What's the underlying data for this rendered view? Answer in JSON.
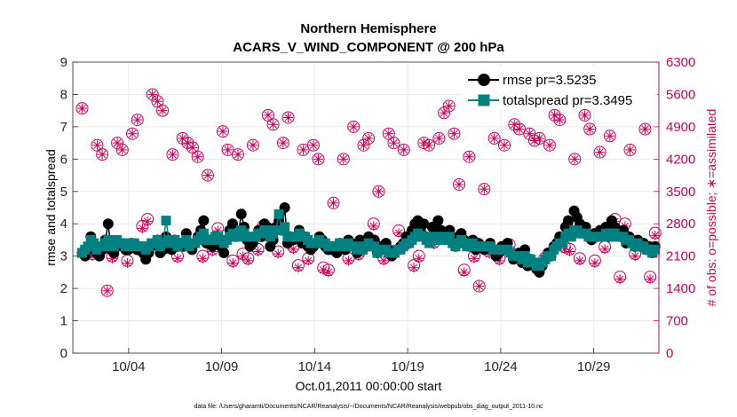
{
  "chart_data": {
    "type": "line",
    "title": "Northern Hemisphere",
    "subtitle": "ACARS_V_WIND_COMPONENT @ 200 hPa",
    "xlabel": "Oct.01,2011 00:00:00 start",
    "ylabel_left": "rmse and totalspread",
    "ylabel_right": "# of obs: o=possible; ∗=assimilated",
    "footnote": "data file: /Users/gharamti/Documents/NCAR/Reanalysis/~/Documents/NCAR/Reanalysis/webpub/obs_diag_output_2011-10.nc",
    "x_range_days": [
      0.5,
      32.0
    ],
    "x_ticks": [
      {
        "value": 3.5,
        "label": "10/04"
      },
      {
        "value": 8.5,
        "label": "10/09"
      },
      {
        "value": 13.5,
        "label": "10/14"
      },
      {
        "value": 18.5,
        "label": "10/19"
      },
      {
        "value": 23.5,
        "label": "10/24"
      },
      {
        "value": 28.5,
        "label": "10/29"
      }
    ],
    "ylim_left": [
      0,
      9
    ],
    "yticks_left": [
      "0",
      "1",
      "2",
      "3",
      "4",
      "5",
      "6",
      "7",
      "8",
      "9"
    ],
    "ylim_right": [
      0,
      6300
    ],
    "yticks_right": [
      "0",
      "700",
      "1400",
      "2100",
      "2800",
      "3500",
      "4200",
      "4900",
      "5600",
      "6300"
    ],
    "grid": true,
    "legend_position": "top-right",
    "colors": {
      "rmse": "#000000",
      "totalspread": "#008080",
      "obs": "#c8005a",
      "axis_right": "#c8005a"
    },
    "series": [
      {
        "name": "rmse pr=3.5235",
        "axis": "left",
        "marker": "circle",
        "values": [
          3.1,
          3.0,
          3.2,
          3.6,
          3.3,
          3.1,
          3.0,
          3.2,
          3.5,
          4.0,
          3.2,
          3.1,
          3.3,
          3.4,
          3.3,
          3.2,
          3.2,
          3.4,
          3.3,
          3.2,
          3.3,
          3.1,
          2.9,
          3.1,
          3.3,
          3.4,
          3.5,
          3.1,
          3.2,
          3.6,
          3.3,
          3.2,
          3.5,
          3.3,
          3.4,
          3.3,
          3.7,
          3.3,
          3.2,
          3.4,
          3.6,
          3.8,
          4.1,
          3.4,
          3.5,
          3.3,
          3.6,
          3.5,
          3.3,
          3.1,
          3.5,
          3.8,
          4.0,
          3.6,
          3.7,
          4.3,
          3.9,
          3.5,
          3.3,
          3.4,
          3.6,
          3.8,
          3.6,
          4.0,
          3.9,
          3.3,
          3.5,
          3.9,
          4.1,
          3.8,
          4.5,
          3.4,
          3.6,
          3.5,
          3.6,
          3.8,
          3.4,
          3.6,
          3.3,
          3.2,
          3.3,
          3.4,
          3.6,
          3.5,
          3.3,
          3.2,
          3.2,
          3.3,
          3.1,
          3.4,
          3.3,
          3.2,
          3.5,
          3.4,
          3.3,
          3.1,
          3.5,
          3.2,
          3.4,
          3.6,
          3.4,
          3.5,
          3.1,
          3.3,
          3.2,
          3.4,
          3.2,
          3.0,
          3.1,
          3.2,
          3.3,
          3.4,
          3.6,
          3.5,
          3.8,
          4.0,
          4.1,
          3.9,
          4.0,
          3.6,
          3.5,
          3.9,
          3.7,
          4.1,
          3.8,
          3.6,
          3.7,
          3.8,
          3.5,
          3.3,
          3.6,
          3.7,
          3.5,
          3.4,
          3.3,
          3.5,
          3.2,
          3.4,
          3.3,
          3.2,
          3.3,
          3.4,
          3.2,
          3.0,
          3.1,
          3.3,
          3.2,
          3.4,
          3.1,
          2.9,
          3.0,
          3.1,
          2.8,
          3.2,
          2.7,
          2.9,
          2.8,
          2.6,
          2.5,
          2.7,
          2.9,
          3.1,
          3.0,
          3.3,
          3.4,
          3.6,
          3.5,
          3.9,
          4.1,
          3.8,
          4.4,
          4.2,
          4.0,
          3.8,
          3.9,
          3.6,
          3.5,
          3.7,
          3.6,
          3.8,
          3.7,
          3.9,
          3.6,
          4.1,
          3.9,
          3.8,
          3.6,
          3.8,
          3.4,
          3.6,
          3.5,
          3.3,
          3.5,
          3.3,
          3.4,
          3.2,
          3.3,
          3.1,
          3.3
        ]
      },
      {
        "name": "totalspread pr=3.3495",
        "axis": "left",
        "marker": "square",
        "values": [
          3.1,
          3.2,
          3.3,
          3.5,
          3.4,
          3.2,
          3.3,
          3.3,
          3.4,
          3.5,
          3.3,
          3.3,
          3.5,
          3.4,
          3.4,
          3.3,
          3.3,
          3.4,
          3.4,
          3.3,
          3.3,
          3.3,
          3.2,
          3.3,
          3.4,
          3.4,
          3.5,
          3.3,
          3.4,
          4.1,
          3.5,
          3.4,
          3.5,
          3.3,
          3.4,
          3.4,
          3.5,
          3.3,
          3.4,
          3.4,
          3.5,
          3.6,
          3.7,
          3.5,
          3.5,
          3.5,
          3.6,
          3.6,
          3.5,
          3.4,
          3.5,
          3.6,
          3.7,
          3.6,
          3.6,
          3.8,
          3.7,
          3.6,
          3.6,
          3.6,
          3.6,
          3.7,
          3.7,
          3.8,
          3.8,
          3.6,
          3.7,
          3.8,
          4.3,
          3.8,
          3.9,
          3.6,
          3.6,
          3.6,
          3.6,
          3.7,
          3.6,
          3.6,
          3.5,
          3.4,
          3.4,
          3.4,
          3.5,
          3.4,
          3.4,
          3.3,
          3.3,
          3.3,
          3.3,
          3.4,
          3.3,
          3.3,
          3.4,
          3.3,
          3.3,
          3.2,
          3.3,
          3.2,
          3.3,
          3.4,
          3.3,
          3.3,
          3.1,
          3.2,
          3.2,
          3.2,
          3.1,
          3.1,
          3.1,
          3.2,
          3.2,
          3.3,
          3.4,
          3.4,
          3.5,
          3.6,
          3.7,
          3.6,
          3.6,
          3.5,
          3.4,
          3.6,
          3.5,
          3.6,
          3.6,
          3.5,
          3.5,
          3.6,
          3.4,
          3.3,
          3.4,
          3.5,
          3.4,
          3.3,
          3.3,
          3.4,
          3.3,
          3.3,
          3.3,
          3.3,
          3.3,
          3.3,
          3.2,
          3.2,
          3.2,
          3.2,
          3.2,
          3.2,
          3.1,
          3.0,
          3.0,
          3.0,
          2.9,
          3.0,
          2.8,
          2.9,
          2.8,
          2.7,
          2.7,
          2.8,
          2.9,
          3.0,
          3.0,
          3.2,
          3.3,
          3.4,
          3.4,
          3.6,
          3.7,
          3.6,
          3.8,
          3.8,
          3.7,
          3.7,
          3.7,
          3.6,
          3.6,
          3.6,
          3.6,
          3.6,
          3.6,
          3.7,
          3.6,
          3.7,
          3.7,
          3.6,
          3.6,
          3.6,
          3.5,
          3.5,
          3.4,
          3.3,
          3.4,
          3.3,
          3.3,
          3.2,
          3.2,
          3.1,
          3.2
        ]
      },
      {
        "name": "obs possible",
        "axis": "right",
        "marker": "circle-open",
        "values": [
          5300,
          2200,
          2150,
          4500,
          4300,
          1350,
          2100,
          4550,
          4400,
          2000,
          4750,
          5050,
          2750,
          2900,
          5600,
          5450,
          5250,
          2300,
          4300,
          2100,
          4650,
          4550,
          4450,
          4250,
          2100,
          3850,
          2250,
          2700,
          4800,
          4400,
          2000,
          4300,
          2150,
          2050,
          4500,
          2250,
          2750,
          5150,
          4950,
          2200,
          4550,
          5100,
          2300,
          1900,
          4400,
          2050,
          4500,
          4200,
          1850,
          1800,
          3250,
          2250,
          4200,
          2050,
          4900,
          2150,
          4500,
          4650,
          2800,
          3500,
          2050,
          4750,
          4550,
          2650,
          4400,
          2400,
          1900,
          2100,
          4550,
          4500,
          2400,
          4650,
          5200,
          5350,
          4750,
          3650,
          1800,
          4250,
          2100,
          1450,
          3550,
          2200,
          4650,
          2050,
          4500,
          2350,
          4950,
          4850,
          2000,
          4750,
          4600,
          4650,
          2050,
          4500,
          5150,
          5050,
          2300,
          2250,
          4200,
          2050,
          5150,
          4850,
          2000,
          4350,
          2300,
          4700,
          2900,
          1650,
          2800,
          4400,
          2150,
          5600,
          4850,
          1650,
          2600
        ]
      },
      {
        "name": "obs assimilated",
        "axis": "right",
        "marker": "asterisk",
        "values": [
          5300,
          2150,
          2100,
          4500,
          4300,
          1350,
          2050,
          4550,
          4400,
          1950,
          4750,
          5050,
          2700,
          2850,
          5600,
          5450,
          5250,
          2250,
          4300,
          2050,
          4650,
          4550,
          4450,
          4250,
          2050,
          3850,
          2200,
          2650,
          4800,
          4400,
          1950,
          4300,
          2100,
          2000,
          4500,
          2200,
          2700,
          5150,
          4950,
          2150,
          4550,
          5100,
          2250,
          1850,
          4400,
          2000,
          4500,
          4200,
          1800,
          1750,
          3250,
          2200,
          4200,
          2000,
          4900,
          2100,
          4500,
          4650,
          2750,
          3500,
          2000,
          4750,
          4550,
          2600,
          4400,
          2350,
          1850,
          2050,
          4550,
          4500,
          2350,
          4650,
          5200,
          5350,
          4750,
          3650,
          1750,
          4250,
          2050,
          1450,
          3550,
          2150,
          4650,
          2000,
          4500,
          2300,
          4950,
          4850,
          1950,
          4750,
          4600,
          4650,
          2000,
          4500,
          5150,
          5050,
          2250,
          2200,
          4200,
          2000,
          5150,
          4850,
          1950,
          4350,
          2250,
          4700,
          2850,
          1600,
          2750,
          4400,
          2100,
          5550,
          4850,
          1600,
          2550
        ]
      }
    ]
  }
}
